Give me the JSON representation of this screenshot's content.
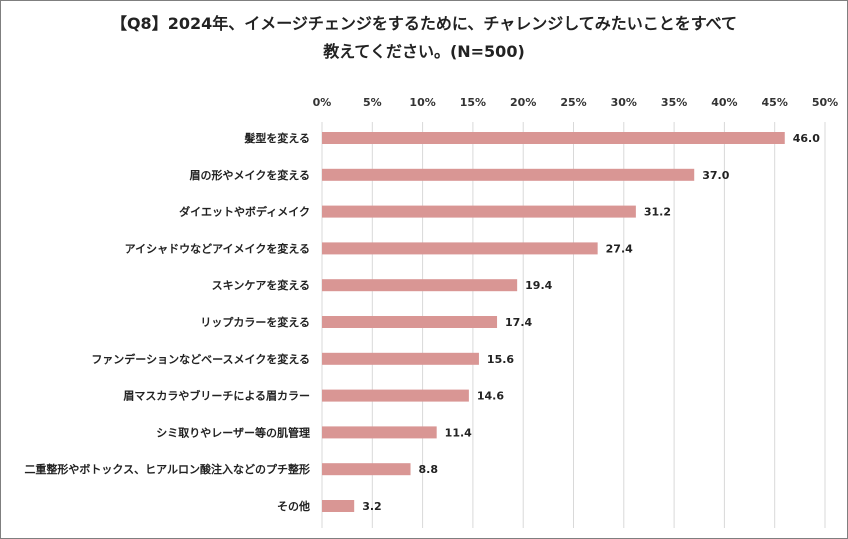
{
  "chart_data": {
    "type": "bar",
    "orientation": "horizontal",
    "title_line1": "【Q8】2024年、イメージチェンジをするために、チャレンジしてみたいことをすべて",
    "title_line2": "教えてください。(N=500)",
    "categories": [
      "髪型を変える",
      "眉の形やメイクを変える",
      "ダイエットやボディメイク",
      "アイシャドウなどアイメイクを変える",
      "スキンケアを変える",
      "リップカラーを変える",
      "ファンデーションなどベースメイクを変える",
      "眉マスカラやブリーチによる眉カラー",
      "シミ取りやレーザー等の肌管理",
      "二重整形やボトックス、ヒアルロン酸注入などのプチ整形",
      "その他"
    ],
    "values": [
      46.0,
      37.0,
      31.2,
      27.4,
      19.4,
      17.4,
      15.6,
      14.6,
      11.4,
      8.8,
      3.2
    ],
    "value_labels": [
      "46.0",
      "37.0",
      "31.2",
      "27.4",
      "19.4",
      "17.4",
      "15.6",
      "14.6",
      "11.4",
      "8.8",
      "3.2"
    ],
    "xlim": [
      0,
      50
    ],
    "xticks": [
      0,
      5,
      10,
      15,
      20,
      25,
      30,
      35,
      40,
      45,
      50
    ],
    "xtick_labels": [
      "0%",
      "5%",
      "10%",
      "15%",
      "20%",
      "25%",
      "30%",
      "35%",
      "40%",
      "45%",
      "50%"
    ],
    "axis_position": "top",
    "grid": true,
    "bar_color": "#d99694",
    "grid_color": "#d9d9d9",
    "legend": "none"
  }
}
